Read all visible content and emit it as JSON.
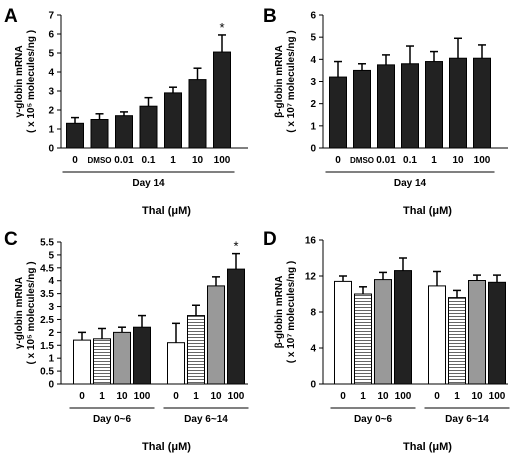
{
  "chart_data": [
    {
      "panel": "A",
      "type": "bar",
      "categories": [
        "0",
        "DMSO",
        "0.01",
        "0.1",
        "1",
        "10",
        "100"
      ],
      "values": [
        1.3,
        1.5,
        1.7,
        2.2,
        2.9,
        3.6,
        5.05
      ],
      "errors": [
        0.3,
        0.3,
        0.2,
        0.45,
        0.3,
        0.6,
        0.9
      ],
      "annotations": [
        "",
        "",
        "",
        "",
        "",
        "",
        "*"
      ],
      "ylabel_line1": "γ-globin mRNA",
      "ylabel_line2": "( x 10⁵ molecules/ng )",
      "ylim": [
        0,
        7
      ],
      "yticks": [
        0,
        1,
        2,
        3,
        4,
        5,
        6,
        7
      ],
      "groups": [
        {
          "label": "Day 14",
          "from": 0,
          "to": 6
        }
      ],
      "xlabel": "Thal (μM)",
      "fill": "#222222"
    },
    {
      "panel": "B",
      "type": "bar",
      "categories": [
        "0",
        "DMSO",
        "0.01",
        "0.1",
        "1",
        "10",
        "100"
      ],
      "values": [
        3.2,
        3.5,
        3.75,
        3.8,
        3.9,
        4.05,
        4.05
      ],
      "errors": [
        0.7,
        0.3,
        0.45,
        0.8,
        0.45,
        0.9,
        0.6
      ],
      "annotations": [
        "",
        "",
        "",
        "",
        "",
        "",
        ""
      ],
      "ylabel_line1": "β-globin mRNA",
      "ylabel_line2": "( x 10⁷ molecules/ng )",
      "ylim": [
        0,
        6
      ],
      "yticks": [
        0,
        1,
        2,
        3,
        4,
        5,
        6
      ],
      "groups": [
        {
          "label": "Day 14",
          "from": 0,
          "to": 6
        }
      ],
      "xlabel": "Thal (μM)",
      "fill": "#222222"
    },
    {
      "panel": "C",
      "type": "bar",
      "categories": [
        "0",
        "1",
        "10",
        "100",
        "0",
        "1",
        "10",
        "100"
      ],
      "values": [
        1.7,
        1.75,
        2.0,
        2.2,
        1.6,
        2.65,
        3.8,
        4.45
      ],
      "errors": [
        0.3,
        0.4,
        0.2,
        0.45,
        0.75,
        0.4,
        0.35,
        0.6
      ],
      "annotations": [
        "",
        "",
        "",
        "",
        "",
        "",
        "",
        "*"
      ],
      "ylabel_line1": "γ-globin mRNA",
      "ylabel_line2": "( x 10⁵ molecules/ng )",
      "ylim": [
        0,
        5.5
      ],
      "yticks": [
        0,
        0.5,
        1,
        1.5,
        2,
        2.5,
        3,
        3.5,
        4,
        4.5,
        5,
        5.5
      ],
      "groups": [
        {
          "label": "Day 0~6",
          "from": 0,
          "to": 3
        },
        {
          "label": "Day 6~14",
          "from": 4,
          "to": 7
        }
      ],
      "xlabel": "Thal (μM)",
      "fills": [
        "#ffffff",
        "stripe",
        "#999999",
        "#222222"
      ]
    },
    {
      "panel": "D",
      "type": "bar",
      "categories": [
        "0",
        "1",
        "10",
        "100",
        "0",
        "1",
        "10",
        "100"
      ],
      "values": [
        11.4,
        10.0,
        11.6,
        12.6,
        10.9,
        9.6,
        11.5,
        11.3
      ],
      "errors": [
        0.6,
        0.8,
        0.8,
        1.4,
        1.6,
        0.8,
        0.6,
        0.8
      ],
      "annotations": [
        "",
        "",
        "",
        "",
        "",
        "",
        "",
        ""
      ],
      "ylabel_line1": "β-globin mRNA",
      "ylabel_line2": "( x 10⁷ molecules/ng )",
      "ylim": [
        0,
        16
      ],
      "yticks": [
        0,
        4,
        8,
        12,
        16
      ],
      "groups": [
        {
          "label": "Day 0~6",
          "from": 0,
          "to": 3
        },
        {
          "label": "Day 6~14",
          "from": 4,
          "to": 7
        }
      ],
      "xlabel": "Thal (μM)",
      "fills": [
        "#ffffff",
        "stripe",
        "#999999",
        "#222222"
      ]
    }
  ]
}
